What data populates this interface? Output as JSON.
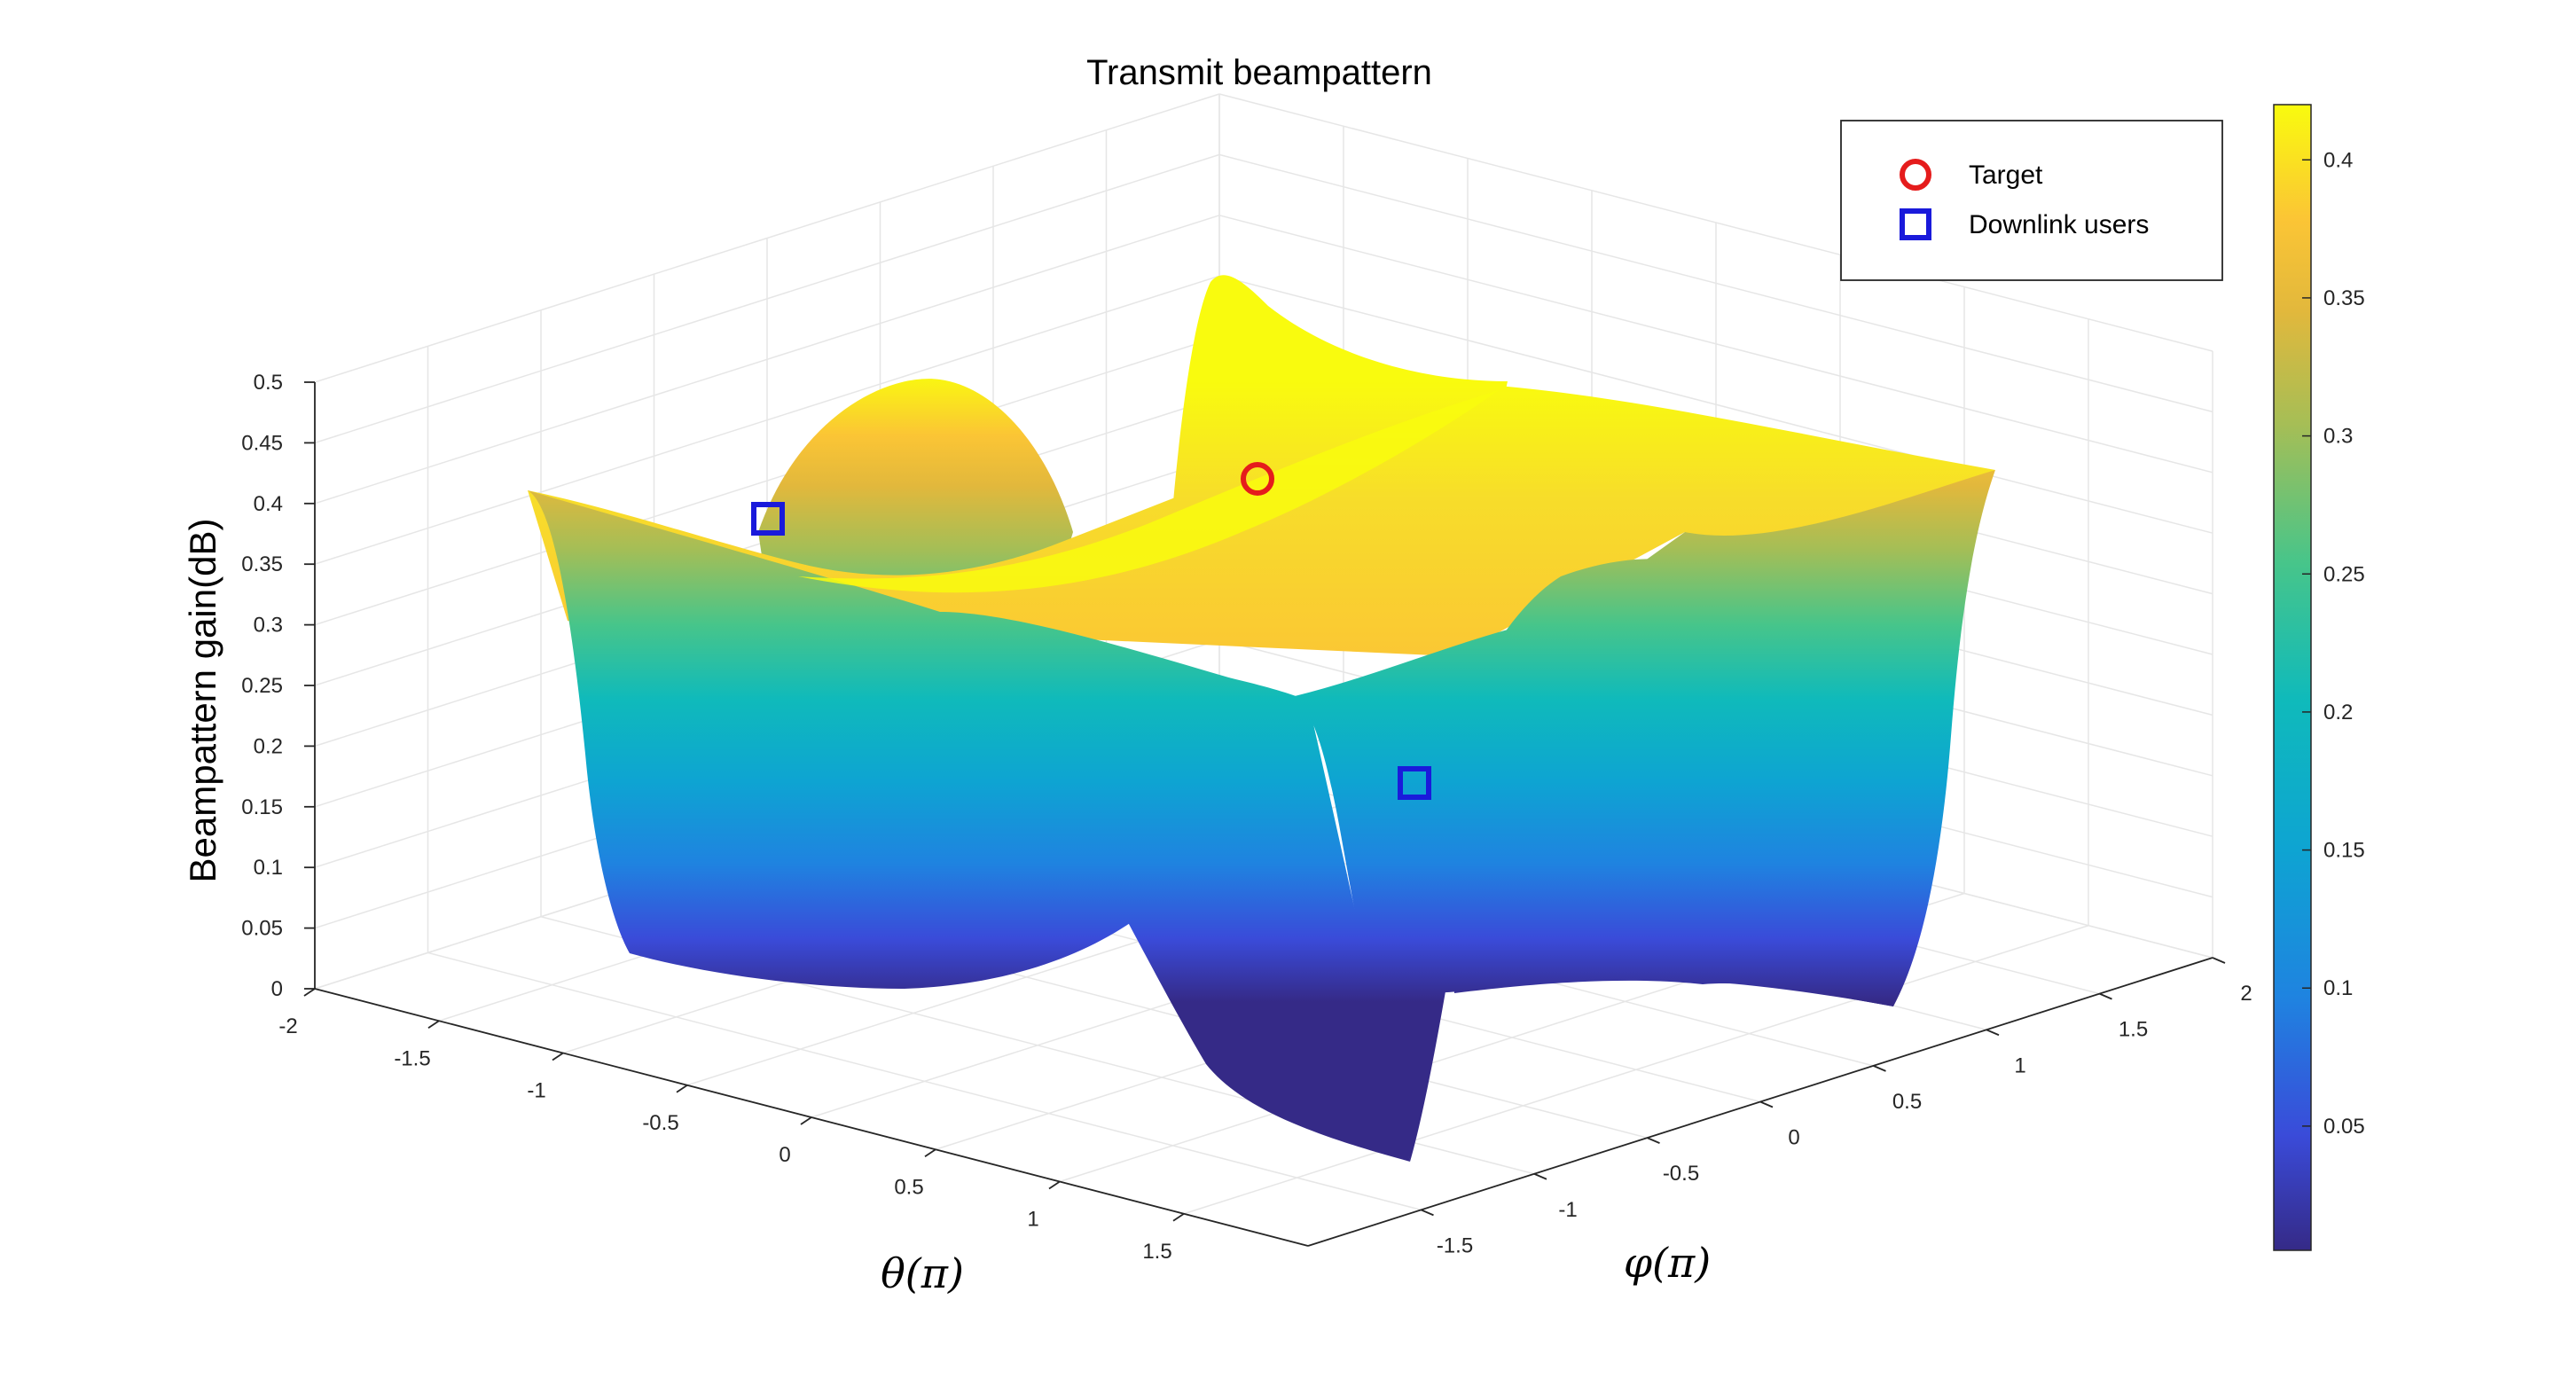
{
  "chart_data": {
    "type": "surface",
    "title": "Transmit beampattern",
    "xlabel": "θ(π)",
    "ylabel": "φ(π)",
    "zlabel": "Beampattern gain(dB)",
    "xlim": [
      -2,
      2
    ],
    "ylim": [
      -2,
      2
    ],
    "zlim": [
      0,
      0.5
    ],
    "x_ticks": [
      "-2",
      "-1.5",
      "-1",
      "-0.5",
      "0",
      "0.5",
      "1",
      "1.5"
    ],
    "y_ticks": [
      "-1.5",
      "-1",
      "-0.5",
      "0",
      "0.5",
      "1",
      "1.5",
      "2"
    ],
    "z_ticks": [
      "0",
      "0.05",
      "0.1",
      "0.15",
      "0.2",
      "0.25",
      "0.3",
      "0.35",
      "0.4",
      "0.45",
      "0.5"
    ],
    "grid": true,
    "colormap": "parula",
    "colorbar": {
      "range": [
        0.005,
        0.42
      ],
      "ticks": [
        "0.05",
        "0.1",
        "0.15",
        "0.2",
        "0.25",
        "0.3",
        "0.35",
        "0.4"
      ]
    },
    "surface_peak": 0.42,
    "markers": [
      {
        "name": "Target",
        "shape": "circle",
        "color": "#e51c1c",
        "x": 0.5,
        "y": 0.4,
        "z": 0.42
      },
      {
        "name": "Downlink users",
        "shape": "square",
        "color": "#1a1adb",
        "x": -2,
        "y": -0.6,
        "z": 0.41
      },
      {
        "name": "Downlink users",
        "shape": "square",
        "color": "#1a1adb",
        "x": 1.2,
        "y": -1.2,
        "z": 0.15
      }
    ],
    "legend": {
      "position": "top-right",
      "entries": [
        {
          "label": "Target",
          "shape": "circle",
          "color": "#e51c1c"
        },
        {
          "label": "Downlink users",
          "shape": "square",
          "color": "#1a1adb"
        }
      ]
    }
  }
}
